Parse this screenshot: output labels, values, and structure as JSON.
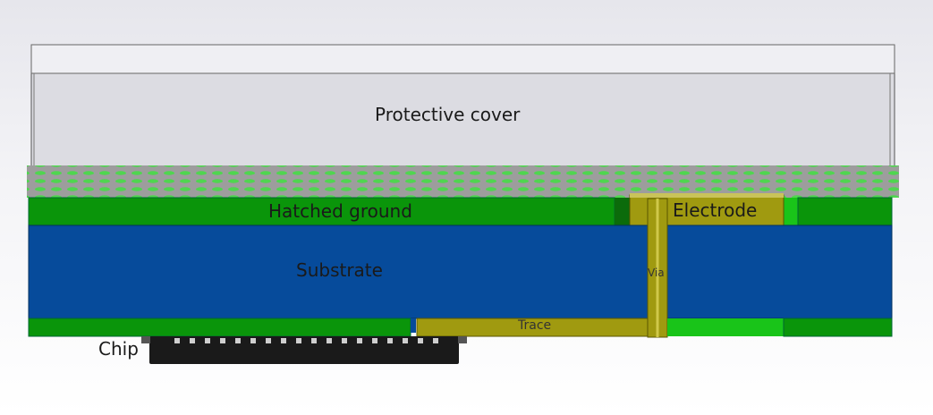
{
  "labels": {
    "protective_cover": "Protective cover",
    "hatched_ground": "Hatched ground",
    "electrode": "Electrode",
    "substrate": "Substrate",
    "via": "Via",
    "trace": "Trace",
    "chip": "Chip"
  },
  "colors": {
    "cover": "#dcdce2",
    "mesh": "#9a9a9a",
    "ground": "#0a950a",
    "substrate": "#064b9b",
    "copper": "#a09a10",
    "chip": "#1a1a1a"
  }
}
